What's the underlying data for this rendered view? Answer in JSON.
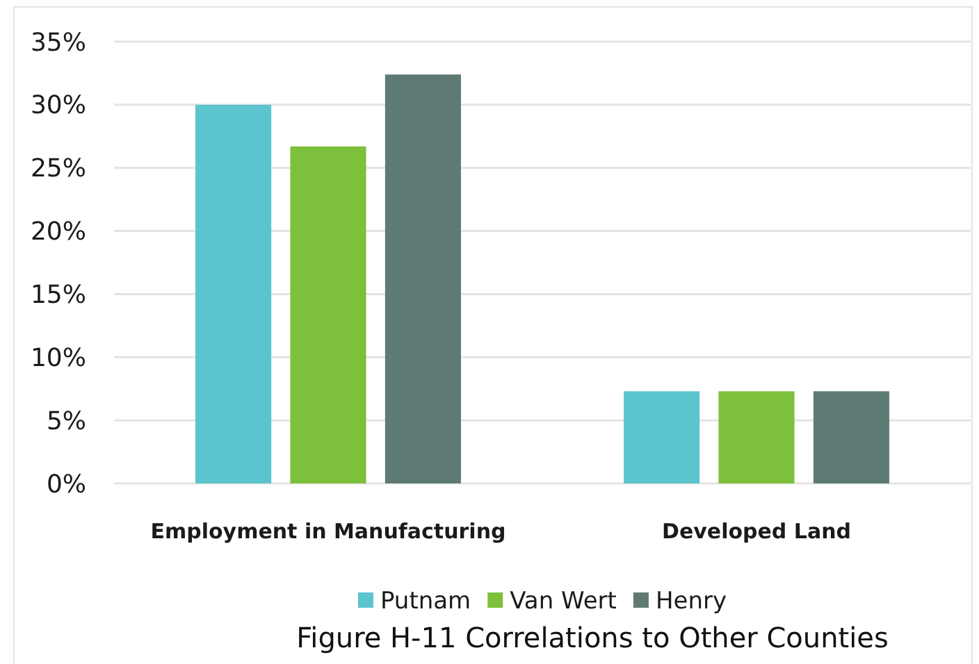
{
  "chart_data": {
    "type": "bar",
    "title": "Figure H-11 Correlations to Other Counties",
    "categories": [
      "Employment in Manufacturing",
      "Developed Land"
    ],
    "series": [
      {
        "name": "Putnam",
        "color": "#5bc4ce",
        "values": [
          30,
          7.3
        ]
      },
      {
        "name": "Van Wert",
        "color": "#7cc03b",
        "values": [
          26.7,
          7.3
        ]
      },
      {
        "name": "Henry",
        "color": "#5e7a74",
        "values": [
          32.4,
          7.3
        ]
      }
    ],
    "ylim": [
      0,
      35
    ],
    "yticks": [
      {
        "value": 0,
        "label": "0%"
      },
      {
        "value": 5,
        "label": "5%"
      },
      {
        "value": 10,
        "label": "10%"
      },
      {
        "value": 15,
        "label": "15%"
      },
      {
        "value": 20,
        "label": "20%"
      },
      {
        "value": 25,
        "label": "25%"
      },
      {
        "value": 30,
        "label": "30%"
      },
      {
        "value": 35,
        "label": "35%"
      }
    ],
    "grid": "y",
    "legend": "bottom"
  }
}
